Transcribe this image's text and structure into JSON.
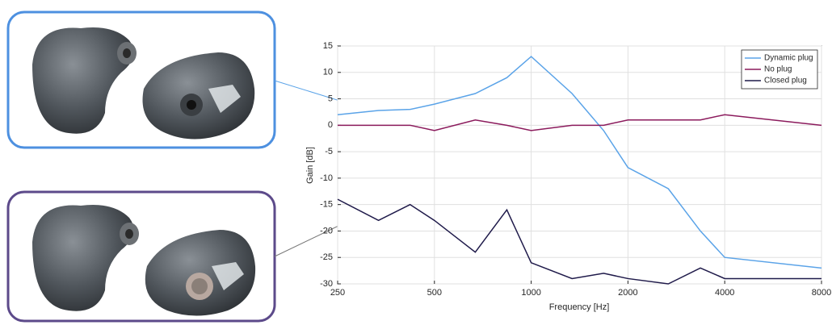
{
  "chart_data": {
    "type": "line",
    "xlabel": "Frequency [Hz]",
    "ylabel": "Gain [dB]",
    "xscale": "log",
    "grid": true,
    "legend": "upper right",
    "xlim": [
      250,
      8000
    ],
    "ylim": [
      -30,
      15
    ],
    "xticks": [
      250,
      500,
      1000,
      2000,
      4000,
      8000
    ],
    "yticks": [
      -30,
      -25,
      -20,
      -15,
      -10,
      -5,
      0,
      5,
      10,
      15
    ],
    "x": [
      250,
      335,
      420,
      500,
      670,
      840,
      1000,
      1340,
      1680,
      2000,
      2670,
      3360,
      4000,
      8000
    ],
    "series": [
      {
        "name": "Dynamic plug",
        "color": "#5aa3e8",
        "values": [
          2,
          2.8,
          3,
          4,
          6,
          9,
          13,
          6,
          -1,
          -8,
          -12,
          -20,
          -25,
          -27
        ]
      },
      {
        "name": "No plug",
        "color": "#8b1a5c",
        "values": [
          0,
          0,
          0,
          -1,
          1,
          0,
          -1,
          0,
          0,
          1,
          1,
          1,
          2,
          0
        ]
      },
      {
        "name": "Closed plug",
        "color": "#1f1a4a",
        "values": [
          -14,
          -18,
          -15,
          -18,
          -24,
          -16,
          -26,
          -29,
          -28,
          -29,
          -30,
          -27,
          -29,
          -29
        ]
      }
    ]
  }
}
